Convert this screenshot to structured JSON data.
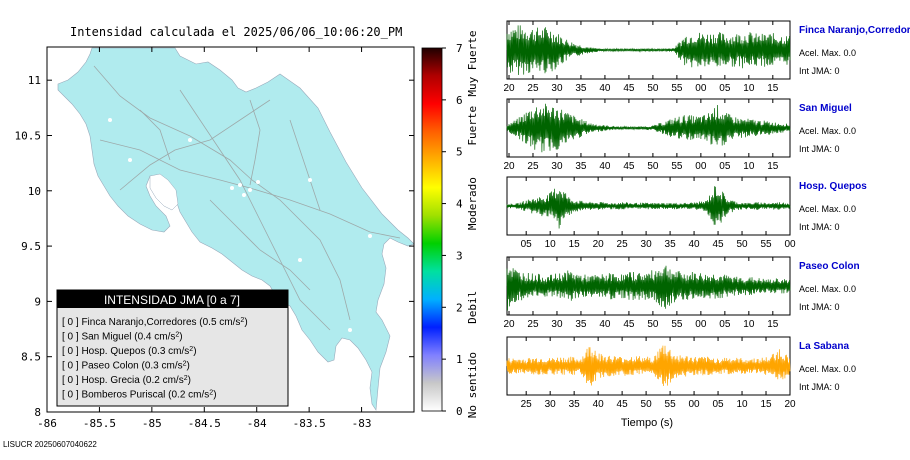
{
  "title": "Intensidad calculada el 2025/06/06_10:06:20_PM",
  "footer": "LISUCR 20250607040622",
  "map": {
    "x_ticks": [
      "-86",
      "-85.5",
      "-85",
      "-84.5",
      "-84",
      "-83.5",
      "-83"
    ],
    "x_values": [
      -86,
      -85.5,
      -85,
      -84.5,
      -84,
      -83.5,
      -83
    ],
    "y_ticks": [
      "11",
      "10.5",
      "10",
      "9.5",
      "9",
      "8.5",
      "8"
    ],
    "y_values": [
      11,
      10.5,
      10,
      9.5,
      9,
      8.5,
      8
    ],
    "xlim": [
      -86,
      -82.5
    ],
    "ylim": [
      8,
      11.3
    ],
    "land_color": "#b0ebee",
    "road_color": "#aaaaaa"
  },
  "legend": {
    "header": "INTENSIDAD JMA [0 a 7]",
    "stations": [
      {
        "int": "[ 0 ]",
        "name": "Finca Naranjo,Corredores",
        "acc": "0.5"
      },
      {
        "int": "[ 0 ]",
        "name": "San Miguel",
        "acc": "0.4"
      },
      {
        "int": "[ 0 ]",
        "name": "Hosp. Quepos",
        "acc": "0.3"
      },
      {
        "int": "[ 0 ]",
        "name": "Paseo Colon",
        "acc": "0.3"
      },
      {
        "int": "[ 0 ]",
        "name": "Hosp. Grecia",
        "acc": "0.2"
      },
      {
        "int": "[ 0 ]",
        "name": "Bomberos Puriscal",
        "acc": "0.2"
      }
    ],
    "unit_prefix": "cm/s",
    "unit_sup": "2"
  },
  "colorbar": {
    "ticks": [
      "0",
      "1",
      "2",
      "3",
      "4",
      "5",
      "6",
      "7"
    ],
    "labels": [
      "No sentido",
      "Debil",
      "Moderado",
      "Fuerte",
      "Muy Fuerte"
    ],
    "label_centers": [
      0.5,
      2.0,
      4.0,
      5.5,
      6.7
    ],
    "colors": [
      "#ffffff",
      "#c8c8c8",
      "#8080ff",
      "#0020ff",
      "#00b0ff",
      "#00e0a0",
      "#00d000",
      "#a0e000",
      "#ffff00",
      "#ffb000",
      "#ff6000",
      "#ff0000",
      "#b00000",
      "#200000"
    ]
  },
  "chart_data": {
    "type": "line",
    "xlabel": "Tiempo (s)",
    "panels": [
      {
        "station": "Finca Naranjo,Corredores",
        "acel_label": "Acel. Max. 0.0",
        "int_label": "Int JMA: 0",
        "color": "#006400",
        "x_ticks": [
          "20",
          "25",
          "30",
          "35",
          "40",
          "45",
          "50",
          "55",
          "00",
          "05",
          "10",
          "15"
        ],
        "tick_start": 20,
        "envelope": [
          0.9,
          0.95,
          0.9,
          0.85,
          0.9,
          0.6,
          0.35,
          0.2,
          0.1,
          0.05,
          0.05,
          0.05,
          0.05,
          0.05,
          0.05,
          0.05,
          0.1,
          0.6,
          0.7,
          0.65,
          0.7,
          0.6,
          0.65,
          0.7,
          0.6,
          0.65,
          0.6,
          0.55
        ]
      },
      {
        "station": "San Miguel",
        "acel_label": "Acel. Max. 0.0",
        "int_label": "Int JMA: 0",
        "color": "#006400",
        "x_ticks": [
          "20",
          "25",
          "30",
          "35",
          "40",
          "45",
          "50",
          "55",
          "00",
          "05",
          "10",
          "15"
        ],
        "tick_start": 20,
        "envelope": [
          0.15,
          0.35,
          0.7,
          0.95,
          0.9,
          0.8,
          0.55,
          0.35,
          0.2,
          0.12,
          0.08,
          0.06,
          0.05,
          0.06,
          0.1,
          0.25,
          0.4,
          0.5,
          0.45,
          0.5,
          0.9,
          0.55,
          0.4,
          0.35,
          0.3,
          0.25,
          0.2,
          0.15
        ]
      },
      {
        "station": "Hosp. Quepos",
        "acel_label": "Acel. Max. 0.0",
        "int_label": "Int JMA: 0",
        "color": "#006400",
        "x_ticks": [
          "05",
          "10",
          "15",
          "20",
          "25",
          "30",
          "35",
          "40",
          "45",
          "50",
          "55",
          "00"
        ],
        "tick_start": 5,
        "envelope": [
          0.08,
          0.1,
          0.25,
          0.35,
          0.45,
          0.9,
          0.3,
          0.2,
          0.15,
          0.15,
          0.12,
          0.15,
          0.12,
          0.12,
          0.12,
          0.12,
          0.12,
          0.12,
          0.15,
          0.2,
          0.9,
          0.3,
          0.15,
          0.12,
          0.15,
          0.12,
          0.15,
          0.12
        ]
      },
      {
        "station": "Paseo Colon",
        "acel_label": "Acel. Max. 0.0",
        "int_label": "Int JMA: 0",
        "color": "#006400",
        "x_ticks": [
          "20",
          "25",
          "30",
          "35",
          "40",
          "45",
          "50",
          "55",
          "00",
          "05",
          "10",
          "15"
        ],
        "tick_start": 20,
        "envelope": [
          0.95,
          0.6,
          0.5,
          0.45,
          0.4,
          0.5,
          0.6,
          0.45,
          0.4,
          0.45,
          0.5,
          0.45,
          0.55,
          0.5,
          0.6,
          0.9,
          0.6,
          0.5,
          0.55,
          0.45,
          0.5,
          0.4,
          0.35,
          0.35,
          0.3,
          0.25,
          0.3,
          0.25
        ]
      },
      {
        "station": "La Sabana",
        "acel_label": "Acel. Max. 0.0",
        "int_label": "Int JMA: 0",
        "color": "#ffa500",
        "x_ticks": [
          "25",
          "30",
          "35",
          "40",
          "45",
          "50",
          "55",
          "00",
          "05",
          "10",
          "15",
          "20"
        ],
        "tick_start": 25,
        "envelope": [
          0.3,
          0.3,
          0.3,
          0.35,
          0.3,
          0.35,
          0.35,
          0.3,
          0.9,
          0.45,
          0.4,
          0.35,
          0.4,
          0.35,
          0.35,
          0.95,
          0.45,
          0.4,
          0.35,
          0.35,
          0.3,
          0.35,
          0.3,
          0.3,
          0.3,
          0.35,
          0.7,
          0.3
        ]
      }
    ]
  }
}
